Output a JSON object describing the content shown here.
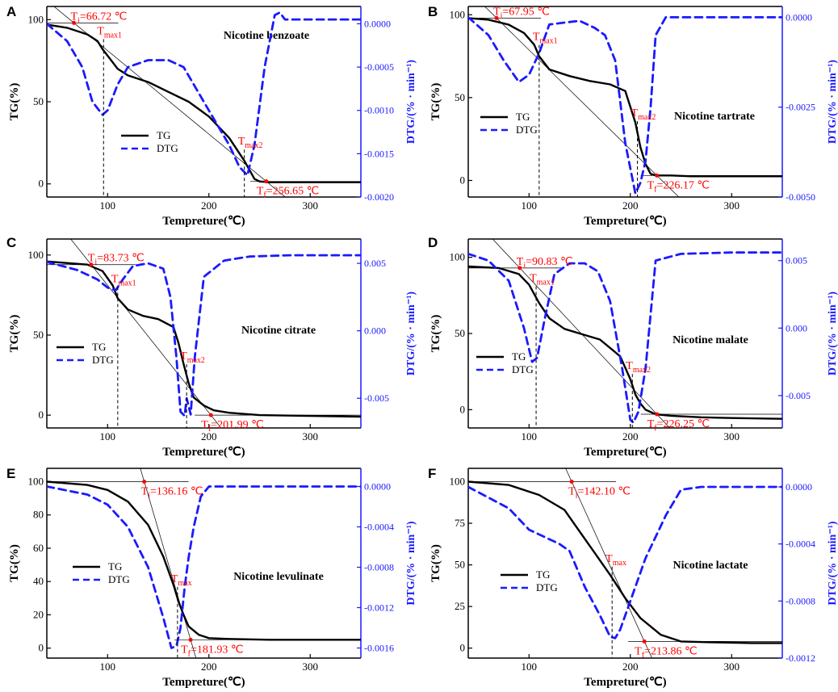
{
  "chart_data": [
    {
      "panel": "A",
      "type": "line",
      "title": "Nicotine benzoate",
      "xlabel": "Tempreture(℃)",
      "ylabel": "TG(%)",
      "y2label": "DTG/(% · min⁻¹)",
      "xlim": [
        40,
        350
      ],
      "ylim": [
        -8,
        108
      ],
      "y2lim": [
        -0.002,
        0.0002
      ],
      "xticks": [
        100,
        200,
        300
      ],
      "yticks": [
        0,
        50,
        100
      ],
      "y2ticks": [
        0.0,
        -0.0005,
        -0.001,
        -0.0015,
        -0.002
      ],
      "y2tick_labels": [
        "0.0000",
        "-0.0005",
        "-0.0010",
        "-0.0015",
        "-0.0020"
      ],
      "series": [
        {
          "name": "TG",
          "style": "solid",
          "color": "#000000",
          "axis": "left",
          "x": [
            40,
            60,
            80,
            90,
            95,
            100,
            110,
            120,
            140,
            160,
            180,
            200,
            220,
            235,
            245,
            250,
            260,
            280,
            300,
            350
          ],
          "y": [
            97,
            95,
            91,
            87,
            82,
            78,
            70,
            66,
            62,
            56,
            50,
            41,
            28,
            14,
            3,
            1.5,
            1,
            1,
            1,
            1
          ]
        },
        {
          "name": "DTG",
          "style": "dashed",
          "color": "#1a1aff",
          "axis": "right",
          "x": [
            40,
            60,
            75,
            85,
            95,
            100,
            110,
            120,
            140,
            160,
            175,
            190,
            205,
            220,
            230,
            238,
            245,
            255,
            265,
            270,
            275,
            300,
            350
          ],
          "y": [
            0,
            -0.0002,
            -0.0005,
            -0.0009,
            -0.00105,
            -0.001,
            -0.0007,
            -0.0005,
            -0.00042,
            -0.00042,
            -0.0005,
            -0.0008,
            -0.0011,
            -0.0014,
            -0.00165,
            -0.00175,
            -0.0014,
            -0.0005,
            0.0001,
            0.00013,
            5e-05,
            5e-05,
            5e-05
          ]
        }
      ],
      "legend": [
        "TG",
        "DTG"
      ],
      "annotations": [
        {
          "type": "Ti",
          "main": "T",
          "sub": "i",
          "value": "=66.72 ℃",
          "x": 66.72,
          "y": 98
        },
        {
          "type": "Tmax",
          "main": "T",
          "sub": "max1",
          "x": 96
        },
        {
          "type": "Tmax",
          "main": "T",
          "sub": "max2",
          "x": 235
        },
        {
          "type": "Tf",
          "main": "T",
          "sub": "f",
          "value": "=256.65 ℃",
          "x": 256.65,
          "y": 1.5
        }
      ]
    },
    {
      "panel": "B",
      "type": "line",
      "title": "Nicotine tartrate",
      "xlabel": "Tempreture(℃)",
      "ylabel": "TG(%)",
      "y2label": "DTG/(% · min⁻¹)",
      "xlim": [
        40,
        350
      ],
      "ylim": [
        -10,
        105
      ],
      "y2lim": [
        -0.005,
        0.0003
      ],
      "xticks": [
        100,
        200,
        300
      ],
      "yticks": [
        0,
        50,
        100
      ],
      "y2ticks": [
        0.0,
        -0.0025,
        -0.005
      ],
      "y2tick_labels": [
        "0.0000",
        "-0.0025",
        "-0.0050"
      ],
      "series": [
        {
          "name": "TG",
          "style": "solid",
          "color": "#000000",
          "axis": "left",
          "x": [
            40,
            60,
            80,
            95,
            105,
            110,
            120,
            140,
            160,
            180,
            195,
            205,
            210,
            215,
            220,
            225,
            240,
            260,
            300,
            350
          ],
          "y": [
            98,
            97,
            94,
            89,
            82,
            75,
            67,
            63,
            60,
            58,
            54,
            35,
            20,
            10,
            4,
            3,
            3,
            2.5,
            2.5,
            2.5
          ]
        },
        {
          "name": "DTG",
          "style": "dashed",
          "color": "#1a1aff",
          "axis": "right",
          "x": [
            40,
            60,
            75,
            90,
            100,
            110,
            120,
            135,
            150,
            165,
            175,
            185,
            195,
            205,
            210,
            215,
            220,
            225,
            235,
            260,
            300,
            350
          ],
          "y": [
            0,
            -0.0005,
            -0.0012,
            -0.0018,
            -0.0016,
            -0.001,
            -0.0002,
            -0.00015,
            -0.0001,
            -0.0003,
            -0.0005,
            -0.0012,
            -0.0035,
            -0.0049,
            -0.0046,
            -0.004,
            -0.0025,
            -0.0005,
            0,
            0,
            0,
            0
          ]
        }
      ],
      "legend": [
        "TG",
        "DTG"
      ],
      "annotations": [
        {
          "type": "Ti",
          "main": "T",
          "sub": "i",
          "value": "=67.95 ℃",
          "x": 67.95,
          "y": 98
        },
        {
          "type": "Tmax",
          "main": "T",
          "sub": "max1",
          "x": 110
        },
        {
          "type": "Tmax",
          "main": "T",
          "sub": "max2",
          "x": 207
        },
        {
          "type": "Tf",
          "main": "T",
          "sub": "f",
          "value": "=226.17 ℃",
          "x": 226.17,
          "y": 3
        }
      ]
    },
    {
      "panel": "C",
      "type": "line",
      "title": "Nicotine citrate",
      "xlabel": "Tempreture(℃)",
      "ylabel": "TG(%)",
      "y2label": "DTG/(% · min⁻¹)",
      "xlim": [
        40,
        350
      ],
      "ylim": [
        -8,
        110
      ],
      "y2lim": [
        -0.0072,
        0.0068
      ],
      "xticks": [
        100,
        200,
        300
      ],
      "yticks": [
        0,
        50,
        100
      ],
      "y2ticks": [
        0.005,
        0.0,
        -0.005
      ],
      "y2tick_labels": [
        "0.005",
        "0.000",
        "-0.005"
      ],
      "series": [
        {
          "name": "TG",
          "style": "solid",
          "color": "#000000",
          "axis": "left",
          "x": [
            40,
            80,
            95,
            105,
            110,
            120,
            135,
            150,
            165,
            170,
            175,
            180,
            185,
            195,
            205,
            220,
            250,
            300,
            350
          ],
          "y": [
            96,
            94,
            90,
            81,
            73,
            66,
            62,
            60,
            55,
            45,
            32,
            20,
            11,
            6,
            3,
            1.5,
            0,
            -0.5,
            -1
          ]
        },
        {
          "name": "DTG",
          "style": "dashed",
          "color": "#1a1aff",
          "axis": "right",
          "x": [
            40,
            70,
            90,
            100,
            108,
            115,
            125,
            140,
            155,
            162,
            168,
            172,
            176,
            178,
            182,
            186,
            195,
            215,
            240,
            280,
            320,
            350
          ],
          "y": [
            0.0051,
            0.0045,
            0.0038,
            0.0032,
            0.003,
            0.0038,
            0.0048,
            0.005,
            0.0046,
            0.0025,
            -0.002,
            -0.006,
            -0.0063,
            -0.005,
            -0.0062,
            -0.002,
            0.004,
            0.0052,
            0.0055,
            0.0056,
            0.0056,
            0.0056
          ]
        }
      ],
      "legend": [
        "TG",
        "DTG"
      ],
      "annotations": [
        {
          "type": "Ti",
          "main": "T",
          "sub": "i",
          "value": "=83.73 ℃",
          "x": 83.73,
          "y": 94
        },
        {
          "type": "Tmax",
          "main": "T",
          "sub": "max1",
          "x": 110
        },
        {
          "type": "Tmax",
          "main": "T",
          "sub": "max2",
          "x": 178
        },
        {
          "type": "Tf",
          "main": "T",
          "sub": "f",
          "value": "=201.99 ℃",
          "x": 201.99,
          "y": 0
        }
      ]
    },
    {
      "panel": "D",
      "type": "line",
      "title": "Nicotine malate",
      "xlabel": "Tempreture(℃)",
      "ylabel": "TG(%)",
      "y2label": "DTG/(% · min⁻¹)",
      "xlim": [
        40,
        350
      ],
      "ylim": [
        -12,
        112
      ],
      "y2lim": [
        -0.0074,
        0.0066
      ],
      "xticks": [
        100,
        200,
        300
      ],
      "yticks": [
        0,
        50,
        100
      ],
      "y2ticks": [
        0.005,
        0.0,
        -0.005
      ],
      "y2tick_labels": [
        "0.005",
        "0.000",
        "-0.005"
      ],
      "series": [
        {
          "name": "TG",
          "style": "solid",
          "color": "#000000",
          "axis": "left",
          "x": [
            40,
            70,
            90,
            100,
            110,
            120,
            135,
            150,
            170,
            190,
            200,
            205,
            210,
            215,
            225,
            240,
            270,
            300,
            350
          ],
          "y": [
            94,
            93,
            89,
            82,
            70,
            60,
            53,
            50,
            46,
            35,
            20,
            10,
            4,
            0,
            -3,
            -4,
            -5,
            -5.5,
            -6
          ]
        },
        {
          "name": "DTG",
          "style": "dashed",
          "color": "#1a1aff",
          "axis": "right",
          "x": [
            40,
            60,
            80,
            95,
            103,
            108,
            115,
            125,
            140,
            155,
            168,
            180,
            192,
            200,
            203,
            208,
            215,
            225,
            250,
            300,
            350
          ],
          "y": [
            0.0055,
            0.005,
            0.0035,
            0.0,
            -0.0025,
            -0.0022,
            0.0005,
            0.004,
            0.0048,
            0.0048,
            0.0042,
            0.002,
            -0.003,
            -0.0068,
            -0.007,
            -0.0062,
            -0.003,
            0.005,
            0.0055,
            0.0056,
            0.0056
          ]
        }
      ],
      "legend": [
        "TG",
        "DTG"
      ],
      "annotations": [
        {
          "type": "Ti",
          "main": "T",
          "sub": "i",
          "value": "=90.83 ℃",
          "x": 90.83,
          "y": 93
        },
        {
          "type": "Tmax",
          "main": "T",
          "sub": "max1",
          "x": 107
        },
        {
          "type": "Tmax",
          "main": "T",
          "sub": "max2",
          "x": 202
        },
        {
          "type": "Tf",
          "main": "T",
          "sub": "f",
          "value": "=226.25 ℃",
          "x": 226.25,
          "y": -3
        }
      ]
    },
    {
      "panel": "E",
      "type": "line",
      "title": "Nicotine levulinate",
      "xlabel": "Tempreture(℃)",
      "ylabel": "TG(%)",
      "y2label": "DTG/(% · min⁻¹)",
      "xlim": [
        40,
        350
      ],
      "ylim": [
        -6,
        108
      ],
      "y2lim": [
        -0.0017,
        0.00018
      ],
      "xticks": [
        100,
        200,
        300
      ],
      "yticks": [
        0,
        20,
        40,
        60,
        80,
        100
      ],
      "y2ticks": [
        0.0,
        -0.0004,
        -0.0008,
        -0.0012,
        -0.0016
      ],
      "y2tick_labels": [
        "0.0000",
        "-0.0004",
        "-0.0008",
        "-0.0012",
        "-0.0016"
      ],
      "series": [
        {
          "name": "TG",
          "style": "solid",
          "color": "#000000",
          "axis": "left",
          "x": [
            40,
            80,
            100,
            120,
            140,
            155,
            165,
            170,
            175,
            180,
            190,
            200,
            220,
            260,
            300,
            350
          ],
          "y": [
            100,
            98,
            95,
            88,
            74,
            55,
            38,
            28,
            20,
            13,
            8,
            6,
            5.5,
            5,
            5,
            5
          ]
        },
        {
          "name": "DTG",
          "style": "dashed",
          "color": "#1a1aff",
          "axis": "right",
          "x": [
            40,
            80,
            100,
            120,
            140,
            155,
            163,
            168,
            172,
            176,
            180,
            185,
            192,
            200,
            215,
            250,
            300,
            350
          ],
          "y": [
            0,
            -8e-05,
            -0.00018,
            -0.0004,
            -0.0008,
            -0.0013,
            -0.0016,
            -0.00158,
            -0.0014,
            -0.001,
            -0.0007,
            -0.0004,
            -0.0001,
            0,
            0,
            0,
            0,
            0
          ]
        }
      ],
      "legend": [
        "TG",
        "DTG"
      ],
      "annotations": [
        {
          "type": "Ti",
          "main": "T",
          "sub": "i",
          "value": "=136.16 ℃",
          "x": 136.16,
          "y": 100
        },
        {
          "type": "Tmax",
          "main": "T",
          "sub": "max",
          "x": 169
        },
        {
          "type": "Tf",
          "main": "T",
          "sub": "f",
          "value": "=181.93 ℃",
          "x": 181.93,
          "y": 5
        }
      ]
    },
    {
      "panel": "F",
      "type": "line",
      "title": "Nicotine lactate",
      "xlabel": "Tempreture(℃)",
      "ylabel": "TG(%)",
      "y2label": "DTG/(% · min⁻¹)",
      "xlim": [
        40,
        350
      ],
      "ylim": [
        -6,
        108
      ],
      "y2lim": [
        -0.0012,
        0.00013
      ],
      "xticks": [
        100,
        200,
        300
      ],
      "yticks": [
        0,
        25,
        50,
        75,
        100
      ],
      "y2ticks": [
        0.0,
        -0.0004,
        -0.0008,
        -0.0012
      ],
      "y2tick_labels": [
        "0.0000",
        "-0.0004",
        "-0.0008",
        "-0.0012"
      ],
      "series": [
        {
          "name": "TG",
          "style": "solid",
          "color": "#000000",
          "axis": "left",
          "x": [
            40,
            80,
            110,
            135,
            150,
            165,
            180,
            195,
            210,
            230,
            250,
            280,
            320,
            350
          ],
          "y": [
            100,
            98,
            92,
            83,
            70,
            57,
            44,
            30,
            18,
            8,
            4,
            3.5,
            3,
            3
          ]
        },
        {
          "name": "DTG",
          "style": "dashed",
          "color": "#1a1aff",
          "axis": "right",
          "x": [
            40,
            80,
            100,
            130,
            140,
            155,
            170,
            180,
            185,
            190,
            200,
            215,
            235,
            250,
            270,
            300,
            350
          ],
          "y": [
            0,
            -0.00015,
            -0.0003,
            -0.0004,
            -0.00045,
            -0.0007,
            -0.0009,
            -0.00105,
            -0.00106,
            -0.001,
            -0.0008,
            -0.0005,
            -0.0002,
            -2e-05,
            0,
            0,
            0
          ]
        }
      ],
      "legend": [
        "TG",
        "DTG"
      ],
      "annotations": [
        {
          "type": "Ti",
          "main": "T",
          "sub": "i",
          "value": "=142.10 ℃",
          "x": 142.1,
          "y": 100
        },
        {
          "type": "Tmax",
          "main": "T",
          "sub": "max",
          "x": 182
        },
        {
          "type": "Tf",
          "main": "T",
          "sub": "f",
          "value": "=213.86 ℃",
          "x": 213.86,
          "y": 4
        }
      ]
    }
  ]
}
